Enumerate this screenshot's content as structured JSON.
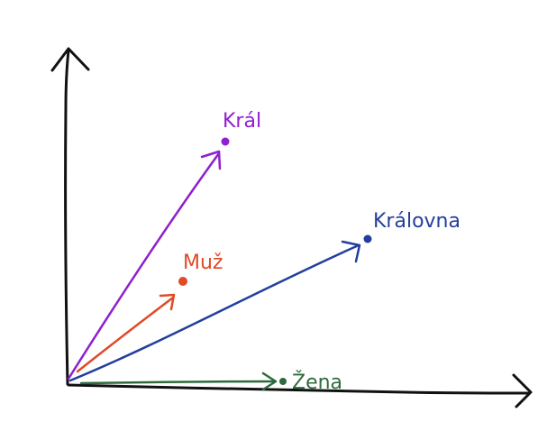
{
  "vectors": [
    {
      "key": "kral",
      "label": "Král",
      "color": "#8f1fcf"
    },
    {
      "key": "kralovna",
      "label": "Královna",
      "color": "#233f9e"
    },
    {
      "key": "muz",
      "label": "Muž",
      "color": "#e04a25"
    },
    {
      "key": "zena",
      "label": "Žena",
      "color": "#2e6b3c"
    }
  ]
}
